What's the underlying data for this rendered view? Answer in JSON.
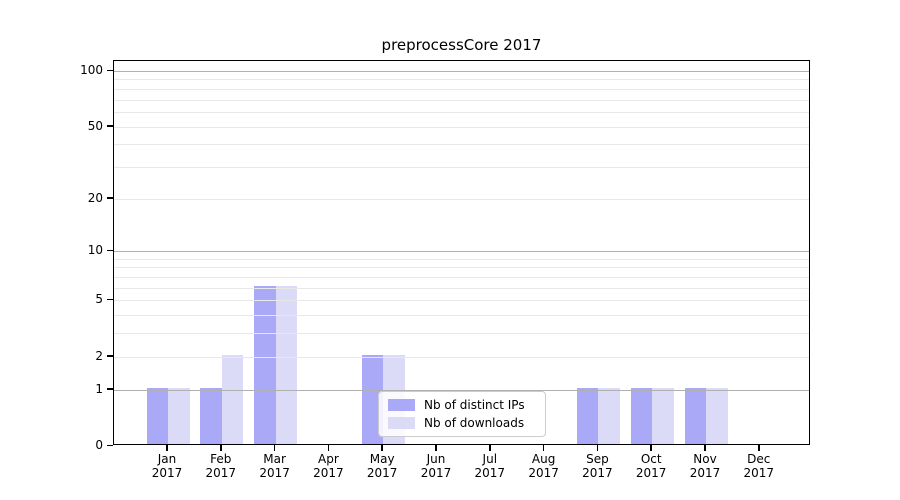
{
  "chart_data": {
    "type": "bar",
    "title": "preprocessCore 2017",
    "year_label": "2017",
    "categories": [
      "Jan",
      "Feb",
      "Mar",
      "Apr",
      "May",
      "Jun",
      "Jul",
      "Aug",
      "Sep",
      "Oct",
      "Nov",
      "Dec"
    ],
    "series": [
      {
        "name": "Nb of distinct IPs",
        "color": "#a9a9f7",
        "values": [
          1,
          1,
          6,
          0,
          2,
          0,
          0,
          0,
          1,
          1,
          1,
          0
        ]
      },
      {
        "name": "Nb of downloads",
        "color": "#dbdbf8",
        "values": [
          1,
          2,
          6,
          0,
          2,
          0,
          0,
          0,
          1,
          1,
          1,
          0
        ]
      }
    ],
    "xlabel": "",
    "ylabel": "",
    "y_scale": "log1p",
    "ylim": [
      0,
      100
    ],
    "yticks": [
      0,
      1,
      2,
      5,
      10,
      20,
      50,
      100
    ],
    "ytick_labels": [
      "0",
      "1",
      "2",
      "5",
      "10",
      "20",
      "50",
      "100"
    ],
    "major_gridlines": [
      1,
      10,
      100
    ],
    "minor_gridlines": [
      2,
      3,
      4,
      5,
      6,
      7,
      8,
      9,
      20,
      30,
      40,
      50,
      60,
      70,
      80,
      90
    ],
    "grid_on": true,
    "legend_position": "lower center",
    "colors": {
      "background": "#ffffff",
      "spine": "#000000",
      "grid_major": "#b0b0b0",
      "grid_minor": "#e8e8e8",
      "legend_border": "#cccccc",
      "text": "#000000"
    }
  }
}
